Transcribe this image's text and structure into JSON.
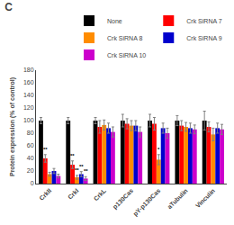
{
  "chart_data": {
    "type": "bar",
    "title": "C",
    "ylabel": "Protein expression (% of control)",
    "categories": [
      "CrkII",
      "CrkI",
      "CrkL",
      "p130Cas",
      "pY-p130Cas",
      "aTubulin",
      "Vinculin"
    ],
    "series": [
      {
        "name": "None",
        "color": "#000000",
        "values": [
          100,
          100,
          100,
          100,
          100,
          100,
          100
        ],
        "errors": [
          5,
          5,
          5,
          10,
          10,
          8,
          15
        ]
      },
      {
        "name": "Crk SiRNA 7",
        "color": "#ff0000",
        "values": [
          40,
          30,
          90,
          95,
          95,
          92,
          90
        ],
        "errors": [
          6,
          6,
          10,
          8,
          10,
          8,
          8
        ]
      },
      {
        "name": "Crk SiRNA 8",
        "color": "#ff8c00",
        "values": [
          15,
          10,
          93,
          92,
          38,
          90,
          78
        ],
        "errors": [
          3,
          3,
          8,
          8,
          8,
          7,
          10
        ]
      },
      {
        "name": "Crk SiRNA 9",
        "color": "#0000cd",
        "values": [
          20,
          15,
          88,
          92,
          88,
          88,
          88
        ],
        "errors": [
          4,
          4,
          8,
          8,
          8,
          8,
          8
        ]
      },
      {
        "name": "Crk SiRNA 10",
        "color": "#cc00cc",
        "values": [
          12,
          8,
          82,
          82,
          80,
          86,
          86
        ],
        "errors": [
          3,
          3,
          8,
          8,
          8,
          7,
          8
        ]
      }
    ],
    "ylim": [
      0,
      180
    ],
    "yticks": [
      0,
      20,
      40,
      60,
      80,
      100,
      120,
      140,
      160,
      180
    ],
    "grid": false,
    "legend": "upper right",
    "annotations": [
      {
        "category": "CrkII",
        "series": "Crk SiRNA 7",
        "text": "**"
      },
      {
        "category": "CrkI",
        "series": "Crk SiRNA 7",
        "text": "**"
      },
      {
        "category": "CrkI",
        "series": "Crk SiRNA 8",
        "text": "**"
      },
      {
        "category": "CrkI",
        "series": "Crk SiRNA 9",
        "text": "**"
      },
      {
        "category": "CrkI",
        "series": "Crk SiRNA 10",
        "text": "**"
      },
      {
        "category": "pY-p130Cas",
        "series": "Crk SiRNA 8",
        "text": "*"
      }
    ]
  }
}
